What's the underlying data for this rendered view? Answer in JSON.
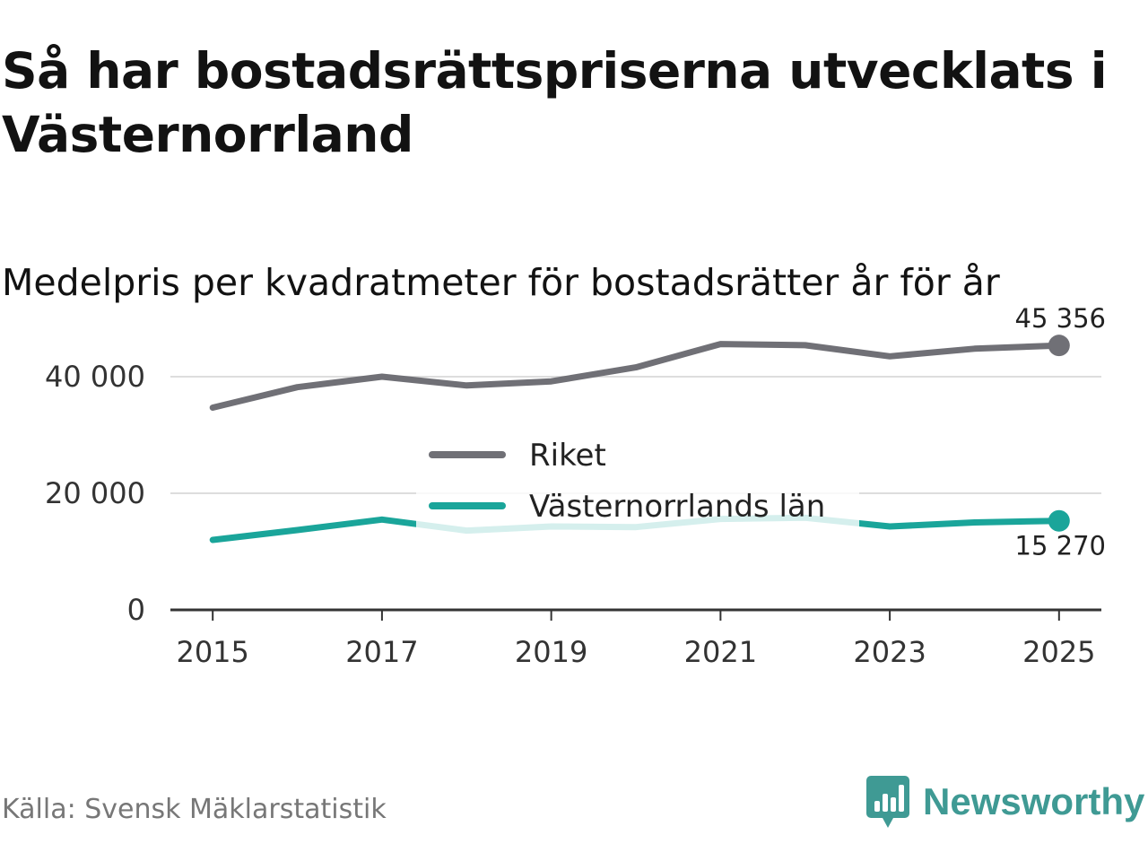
{
  "header": {
    "title": "Så har bostadsrättspriserna utvecklats i Västernorrland",
    "subtitle": "Medelpris per kvadratmeter för bostadsrätter år för år"
  },
  "footer": {
    "source": "Källa: Svensk Mäklarstatistik",
    "brand": "Newsworthy"
  },
  "colors": {
    "riket": "#707076",
    "lan": "#1aa59a",
    "grid": "#dddddd",
    "axis": "#333333",
    "brand": "#3f9a94"
  },
  "chart_data": {
    "type": "line",
    "title": "Medelpris per kvadratmeter för bostadsrätter år för år",
    "xlabel": "",
    "ylabel": "",
    "x": [
      2015,
      2016,
      2017,
      2018,
      2019,
      2020,
      2021,
      2022,
      2023,
      2024,
      2025
    ],
    "xlim": [
      2014.5,
      2025.5
    ],
    "ylim": [
      0,
      50000
    ],
    "x_ticks": [
      2015,
      2017,
      2019,
      2021,
      2023,
      2025
    ],
    "x_tick_labels": [
      "2015",
      "2017",
      "2019",
      "2021",
      "2023",
      "2025"
    ],
    "y_ticks": [
      0,
      20000,
      40000
    ],
    "y_tick_labels": [
      "0",
      "20 000",
      "40 000"
    ],
    "grid": "horizontal",
    "legend_position": "center",
    "series": [
      {
        "name": "Riket",
        "key": "riket",
        "values": [
          34700,
          38200,
          40000,
          38500,
          39200,
          41600,
          45600,
          45400,
          43500,
          44800,
          45356
        ],
        "end_label": "45 356",
        "end_label_position": "above"
      },
      {
        "name": "Västernorrlands län",
        "key": "lan",
        "values": [
          12000,
          13700,
          15500,
          13600,
          14300,
          14200,
          15600,
          15800,
          14300,
          15000,
          15270
        ],
        "end_label": "15 270",
        "end_label_position": "below"
      }
    ]
  }
}
